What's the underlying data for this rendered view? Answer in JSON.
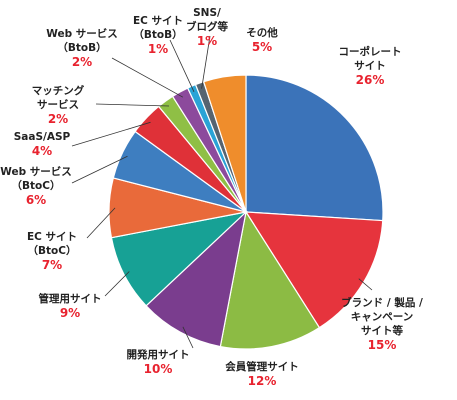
{
  "chart_data": {
    "type": "pie",
    "title": "",
    "start_angle_deg": 0,
    "direction": "clockwise",
    "slices": [
      {
        "label": [
          "コーポレート",
          "サイト"
        ],
        "pct_text": "26%",
        "value": 26,
        "color": "#3b73b9"
      },
      {
        "label": [
          "ブランド / 製品 /",
          "キャンペーン",
          "サイト等"
        ],
        "pct_text": "15%",
        "value": 15,
        "color": "#e6343d"
      },
      {
        "label": [
          "会員管理サイト"
        ],
        "pct_text": "12%",
        "value": 12,
        "color": "#8cbb44"
      },
      {
        "label": [
          "開発用サイト"
        ],
        "pct_text": "10%",
        "value": 10,
        "color": "#7a3d8e"
      },
      {
        "label": [
          "管理用サイト"
        ],
        "pct_text": "9%",
        "value": 9,
        "color": "#17a195"
      },
      {
        "label": [
          "EC サイト",
          "（BtoC）"
        ],
        "pct_text": "7%",
        "value": 7,
        "color": "#e96a3a"
      },
      {
        "label": [
          "Web サービス",
          "（BtoC）"
        ],
        "pct_text": "6%",
        "value": 6,
        "color": "#3e7ec0"
      },
      {
        "label": [
          "SaaS/ASP"
        ],
        "pct_text": "4%",
        "value": 4,
        "color": "#df3138"
      },
      {
        "label": [
          "マッチング",
          "サービス"
        ],
        "pct_text": "2%",
        "value": 2,
        "color": "#8fbf45"
      },
      {
        "label": [
          "Web サービス",
          "（BtoB）"
        ],
        "pct_text": "2%",
        "value": 2,
        "color": "#8c4a9c"
      },
      {
        "label": [
          "EC サイト",
          "（BtoB）"
        ],
        "pct_text": "1%",
        "value": 1,
        "color": "#2aa3d6"
      },
      {
        "label": [
          "SNS/",
          "ブログ等"
        ],
        "pct_text": "1%",
        "value": 1,
        "color": "#566470"
      },
      {
        "label": [
          "その他"
        ],
        "pct_text": "5%",
        "value": 5,
        "color": "#ef8d2c"
      }
    ]
  }
}
